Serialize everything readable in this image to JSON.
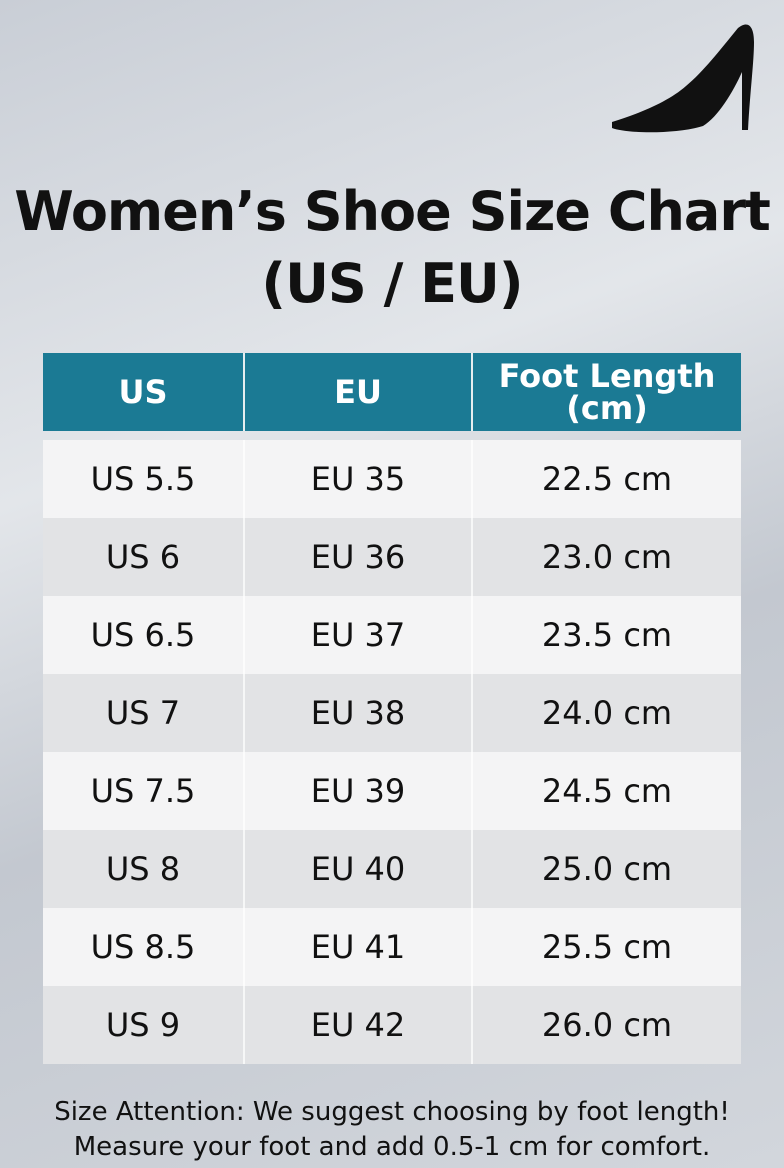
{
  "header": {
    "title": "Women’s Shoe Size Chart",
    "subtitle": "(US / EU)"
  },
  "table": {
    "columns": [
      "US",
      "EU",
      "Foot Length (cm)"
    ],
    "rows": [
      [
        "US 5.5",
        "EU 35",
        "22.5 cm"
      ],
      [
        "US 6",
        "EU 36",
        "23.0 cm"
      ],
      [
        "US 6.5",
        "EU 37",
        "23.5 cm"
      ],
      [
        "US 7",
        "EU 38",
        "24.0 cm"
      ],
      [
        "US 7.5",
        "EU 39",
        "24.5 cm"
      ],
      [
        "US 8",
        "EU 40",
        "25.0 cm"
      ],
      [
        "US 8.5",
        "EU 41",
        "25.5 cm"
      ],
      [
        "US 9",
        "EU 42",
        "26.0 cm"
      ]
    ]
  },
  "footer": {
    "lines": [
      "Size Attention: We suggest choosing by foot length!",
      "Measure your foot and add 0.5-1 cm for comfort."
    ]
  }
}
